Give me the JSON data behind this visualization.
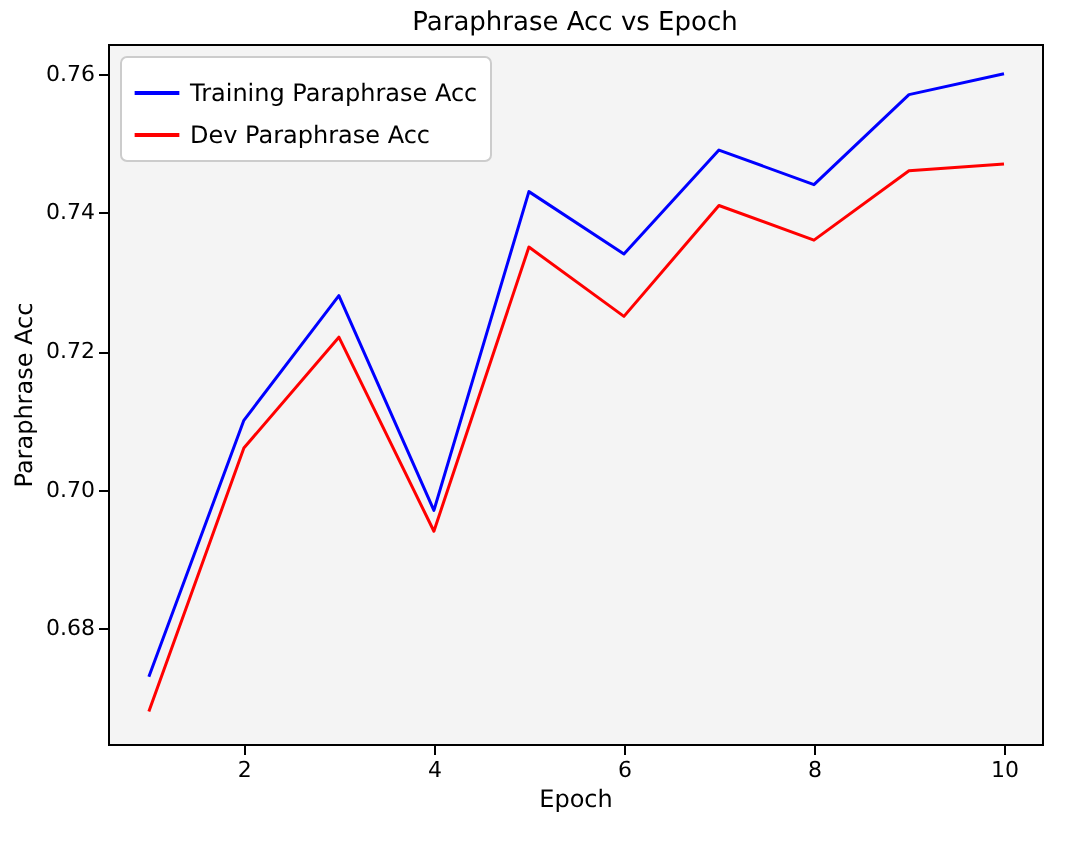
{
  "chart_data": {
    "type": "line",
    "title": "Paraphrase Acc vs Epoch",
    "xlabel": "Epoch",
    "ylabel": "Paraphrase Acc",
    "x": [
      1,
      2,
      3,
      4,
      5,
      6,
      7,
      8,
      9,
      10
    ],
    "series": [
      {
        "name": "Training Paraphrase Acc",
        "color": "#0000ff",
        "values": [
          0.673,
          0.71,
          0.728,
          0.697,
          0.743,
          0.734,
          0.749,
          0.744,
          0.757,
          0.76
        ]
      },
      {
        "name": "Dev Paraphrase Acc",
        "color": "#ff0000",
        "values": [
          0.668,
          0.706,
          0.722,
          0.694,
          0.735,
          0.725,
          0.741,
          0.736,
          0.746,
          0.747
        ]
      }
    ],
    "xlim": [
      0.57,
      10.4
    ],
    "xticks": [
      2,
      4,
      6,
      8,
      10
    ],
    "ylim": [
      0.6633,
      0.7643
    ],
    "yticks": [
      0.68,
      {
        "value": 0.7,
        "label": "0.70"
      },
      0.72,
      0.74,
      0.76
    ],
    "grid": false,
    "legend": "top left",
    "marker": "none",
    "line_style": "solid"
  }
}
